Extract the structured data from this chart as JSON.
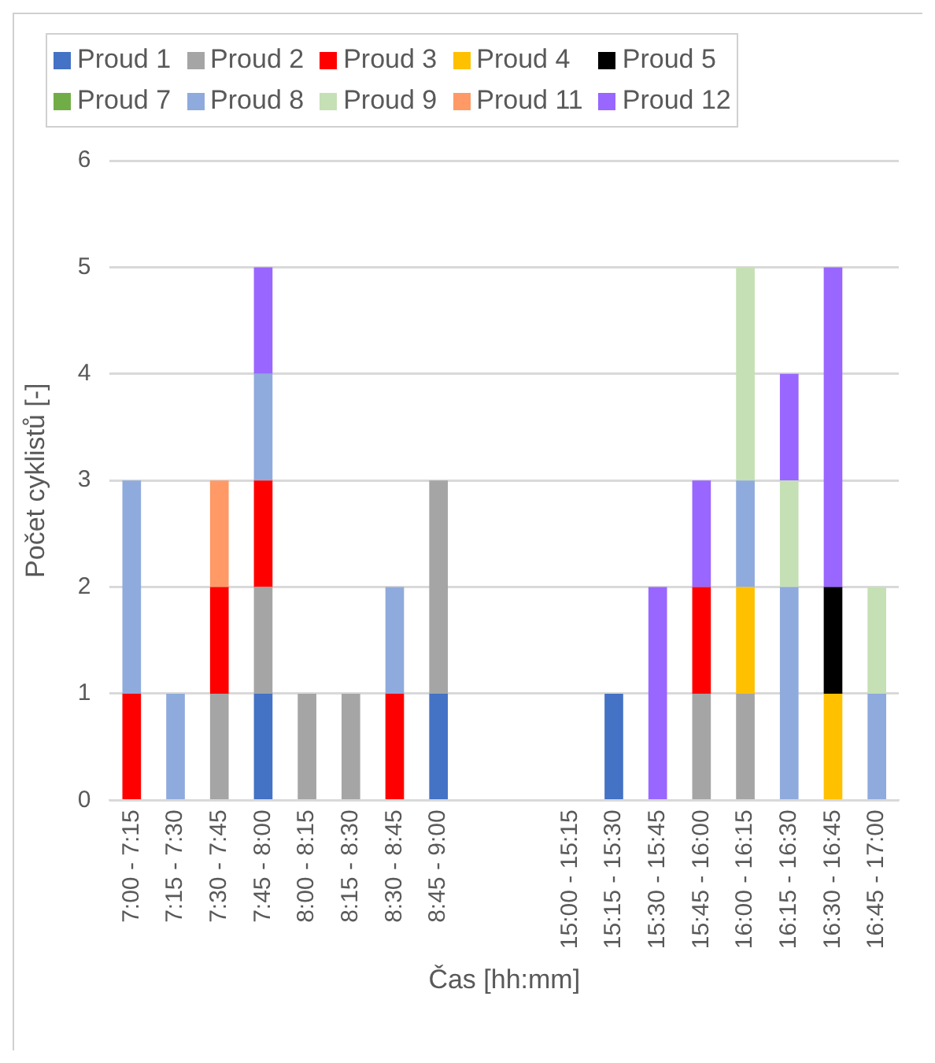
{
  "chart_data": {
    "type": "bar",
    "stacked": true,
    "xlabel": "Čas [hh:mm]",
    "ylabel": "Počet cyklistů [-]",
    "categories": [
      "7:00 - 7:15",
      "7:15 - 7:30",
      "7:30 - 7:45",
      "7:45 - 8:00",
      "8:00 - 8:15",
      "8:15 - 8:30",
      "8:30 - 8:45",
      "8:45 - 9:00",
      null,
      null,
      "15:00 - 15:15",
      "15:15 - 15:30",
      "15:30 - 15:45",
      "15:45 - 16:00",
      "16:00 - 16:15",
      "16:15 - 16:30",
      "16:30 - 16:45",
      "16:45 - 17:00"
    ],
    "series": [
      {
        "name": "Proud 1",
        "color": "#4472c4",
        "values": [
          null,
          null,
          null,
          1,
          null,
          null,
          null,
          1,
          null,
          null,
          null,
          1,
          null,
          null,
          null,
          null,
          null,
          null
        ]
      },
      {
        "name": "Proud 2",
        "color": "#a5a5a5",
        "values": [
          null,
          null,
          1,
          1,
          1,
          1,
          null,
          2,
          null,
          null,
          null,
          null,
          null,
          1,
          1,
          null,
          null,
          null
        ]
      },
      {
        "name": "Proud 3",
        "color": "#ff0000",
        "values": [
          1,
          null,
          1,
          1,
          null,
          null,
          1,
          null,
          null,
          null,
          null,
          null,
          null,
          1,
          null,
          null,
          null,
          null
        ]
      },
      {
        "name": "Proud 4",
        "color": "#ffc000",
        "values": [
          null,
          null,
          null,
          null,
          null,
          null,
          null,
          null,
          null,
          null,
          null,
          null,
          null,
          null,
          1,
          null,
          1,
          null
        ]
      },
      {
        "name": "Proud 5",
        "color": "#000000",
        "values": [
          null,
          null,
          null,
          null,
          null,
          null,
          null,
          null,
          null,
          null,
          null,
          null,
          null,
          null,
          null,
          null,
          1,
          null
        ]
      },
      {
        "name": "Proud 7",
        "color": "#70ad47",
        "values": [
          null,
          null,
          null,
          null,
          null,
          null,
          null,
          null,
          null,
          null,
          null,
          null,
          null,
          null,
          null,
          null,
          null,
          null
        ]
      },
      {
        "name": "Proud 8",
        "color": "#8faadc",
        "values": [
          2,
          1,
          null,
          1,
          null,
          null,
          1,
          null,
          null,
          null,
          null,
          null,
          null,
          null,
          1,
          2,
          null,
          1
        ]
      },
      {
        "name": "Proud 9",
        "color": "#c5e0b4",
        "values": [
          null,
          null,
          null,
          null,
          null,
          null,
          null,
          null,
          null,
          null,
          null,
          null,
          null,
          null,
          2,
          1,
          null,
          1
        ]
      },
      {
        "name": "Proud 11",
        "color": "#ff9966",
        "values": [
          null,
          null,
          1,
          null,
          null,
          null,
          null,
          null,
          null,
          null,
          null,
          null,
          null,
          null,
          null,
          null,
          null,
          null
        ]
      },
      {
        "name": "Proud 12",
        "color": "#9966ff",
        "values": [
          null,
          null,
          null,
          1,
          null,
          null,
          null,
          null,
          null,
          null,
          null,
          null,
          2,
          1,
          null,
          1,
          3,
          null
        ]
      }
    ],
    "ylim": [
      0,
      6
    ],
    "yticks": [
      0,
      1,
      2,
      3,
      4,
      5,
      6
    ],
    "grid": "y",
    "legend": "top"
  }
}
